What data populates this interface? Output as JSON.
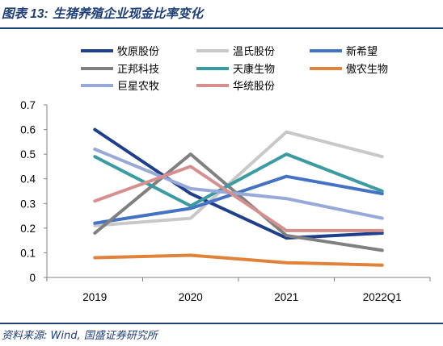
{
  "header": {
    "figure_no": "图表 13:",
    "title": "生猪养殖企业现金比率变化"
  },
  "footer": {
    "source": "资料来源: Wind, 国盛证券研究所"
  },
  "chart_data": {
    "type": "line",
    "title": "生猪养殖企业现金比率变化",
    "xlabel": "",
    "ylabel": "",
    "categories": [
      "2019",
      "2020",
      "2021",
      "2022Q1"
    ],
    "ylim": [
      0,
      0.7
    ],
    "yticks": [
      "0",
      "0.1",
      "0.2",
      "0.3",
      "0.4",
      "0.5",
      "0.6",
      "0.7"
    ],
    "grid": false,
    "legend": "top",
    "series": [
      {
        "name": "牧原股份",
        "color": "#1f3f8c",
        "values": [
          0.6,
          0.34,
          0.16,
          0.18
        ]
      },
      {
        "name": "温氏股份",
        "color": "#c8c8c8",
        "values": [
          0.21,
          0.24,
          0.59,
          0.49
        ]
      },
      {
        "name": "新希望",
        "color": "#4472c4",
        "values": [
          0.22,
          0.28,
          0.41,
          0.34
        ]
      },
      {
        "name": "正邦科技",
        "color": "#808080",
        "values": [
          0.18,
          0.5,
          0.17,
          0.11
        ]
      },
      {
        "name": "天康生物",
        "color": "#3a9ba0",
        "values": [
          0.49,
          0.29,
          0.5,
          0.35
        ]
      },
      {
        "name": "傲农生物",
        "color": "#e0823a",
        "values": [
          0.08,
          0.09,
          0.06,
          0.05
        ]
      },
      {
        "name": "巨星农牧",
        "color": "#97a9d8",
        "values": [
          0.52,
          0.36,
          0.32,
          0.24
        ]
      },
      {
        "name": "华统股份",
        "color": "#d68f8f",
        "values": [
          0.31,
          0.45,
          0.19,
          0.19
        ]
      }
    ]
  }
}
